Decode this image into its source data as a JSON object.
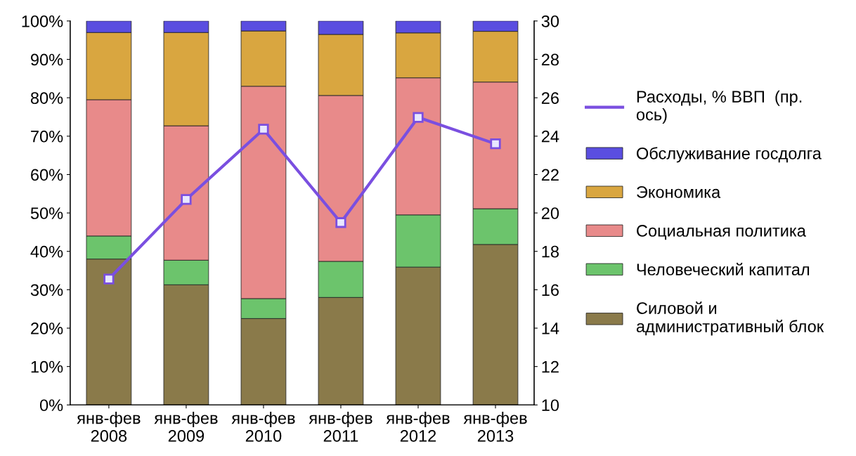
{
  "chart_data": {
    "type": "bar",
    "stacked": true,
    "categories": [
      "янв-фев\n2008",
      "янв-фев\n2009",
      "янв-фев\n2010",
      "янв-фев\n2011",
      "янв-фев\n2012",
      "янв-фев\n2013"
    ],
    "series": [
      {
        "name": "Силовой и\nадминистративный блок",
        "color": "#8a7a4a",
        "values": [
          38,
          31.3,
          22.5,
          28,
          35.9,
          41.8
        ]
      },
      {
        "name": "Человеческий капитал",
        "color": "#6cc46c",
        "values": [
          6,
          6.4,
          5.2,
          9.4,
          13.6,
          9.3
        ]
      },
      {
        "name": "Социальная политика",
        "color": "#e88a8a",
        "values": [
          35.5,
          35,
          55.3,
          43.2,
          35.7,
          33
        ]
      },
      {
        "name": "Экономика",
        "color": "#d9a640",
        "values": [
          17.5,
          24.3,
          14.4,
          15.9,
          11.7,
          13.2
        ]
      },
      {
        "name": "Обслуживание госдолга",
        "color": "#5a4ee0",
        "values": [
          3,
          3,
          2.6,
          3.5,
          3.1,
          2.7
        ]
      },
      {
        "name": "Расходы, % ВВП  (пр.\nось)",
        "type": "line",
        "axis": "y2",
        "color": "#7a4fe0",
        "values": [
          16.56,
          20.7,
          24.36,
          19.5,
          24.98,
          23.6
        ]
      }
    ],
    "ylim": [
      0,
      100
    ],
    "yticks": [
      {
        "value": 0,
        "label": "0%"
      },
      {
        "value": 10,
        "label": "10%"
      },
      {
        "value": 20,
        "label": "20%"
      },
      {
        "value": 30,
        "label": "30%"
      },
      {
        "value": 40,
        "label": "40%"
      },
      {
        "value": 50,
        "label": "50%"
      },
      {
        "value": 60,
        "label": "60%"
      },
      {
        "value": 70,
        "label": "70%"
      },
      {
        "value": 80,
        "label": "80%"
      },
      {
        "value": 90,
        "label": "90%"
      },
      {
        "value": 100,
        "label": "100%"
      }
    ],
    "y2lim": [
      10,
      30
    ],
    "y2ticks": [
      10,
      12,
      14,
      16,
      18,
      20,
      22,
      24,
      26,
      28,
      30
    ],
    "marker": "square",
    "legend": "right"
  }
}
